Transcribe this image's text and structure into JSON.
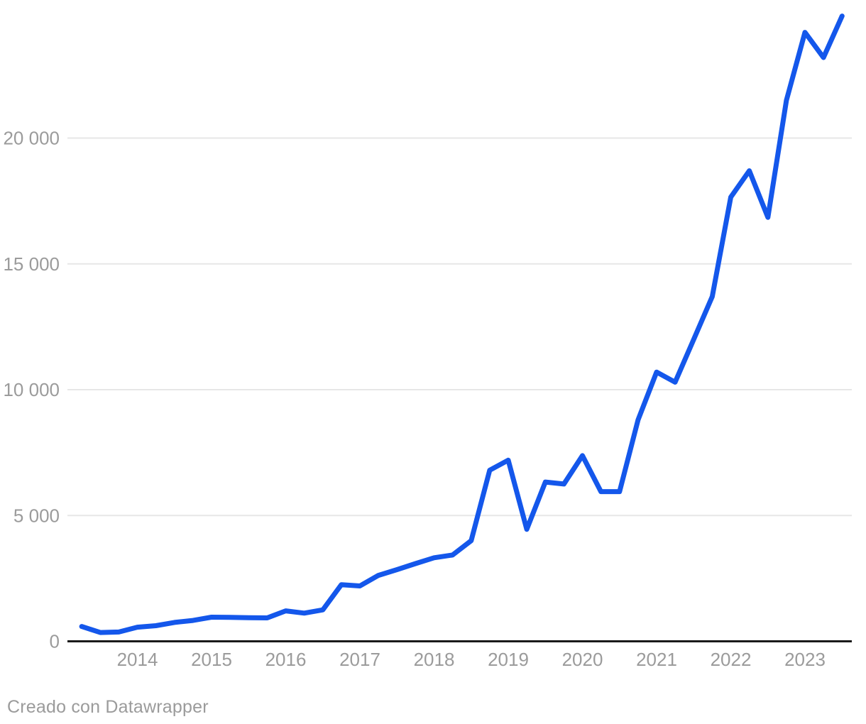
{
  "chart_data": {
    "type": "line",
    "title": "",
    "xlabel": "",
    "ylabel": "",
    "x": [
      "2013-Q2",
      "2013-Q3",
      "2013-Q4",
      "2014-Q1",
      "2014-Q2",
      "2014-Q3",
      "2014-Q4",
      "2015-Q1",
      "2015-Q2",
      "2015-Q3",
      "2015-Q4",
      "2016-Q1",
      "2016-Q2",
      "2016-Q3",
      "2016-Q4",
      "2017-Q1",
      "2017-Q2",
      "2017-Q3",
      "2017-Q4",
      "2018-Q1",
      "2018-Q2",
      "2018-Q3",
      "2018-Q4",
      "2019-Q1",
      "2019-Q2",
      "2019-Q3",
      "2019-Q4",
      "2020-Q1",
      "2020-Q2",
      "2020-Q3",
      "2020-Q4",
      "2021-Q1",
      "2021-Q2",
      "2021-Q3",
      "2021-Q4",
      "2022-Q1",
      "2022-Q2",
      "2022-Q3",
      "2022-Q4",
      "2023-Q1",
      "2023-Q2",
      "2023-Q3"
    ],
    "values": [
      590,
      350,
      370,
      560,
      620,
      750,
      830,
      960,
      950,
      940,
      930,
      1210,
      1120,
      1250,
      2250,
      2200,
      2620,
      2850,
      3090,
      3320,
      3430,
      4000,
      6800,
      7200,
      4450,
      6330,
      6250,
      7380,
      5950,
      5950,
      8800,
      10700,
      10300,
      12000,
      13700,
      17650,
      18700,
      16850,
      21500,
      24200,
      23200,
      24850
    ],
    "y_ticks": [
      0,
      5000,
      10000,
      15000,
      20000
    ],
    "y_tick_labels": [
      "0",
      "5 000",
      "10 000",
      "15 000",
      "20 000"
    ],
    "x_tick_years": [
      2014,
      2015,
      2016,
      2017,
      2018,
      2019,
      2020,
      2021,
      2022,
      2023
    ],
    "x_tick_labels": [
      "2014",
      "2015",
      "2016",
      "2017",
      "2018",
      "2019",
      "2020",
      "2021",
      "2022",
      "2023"
    ],
    "ylim": [
      0,
      25400
    ],
    "grid": "horizontal-only",
    "legend": "none",
    "line_color": "#1457eb",
    "grid_color": "#e7e7e7",
    "axis_line_color": "#1a1a1a",
    "tick_label_color": "#9b9b9b"
  },
  "footer": {
    "credit": "Creado con Datawrapper"
  }
}
